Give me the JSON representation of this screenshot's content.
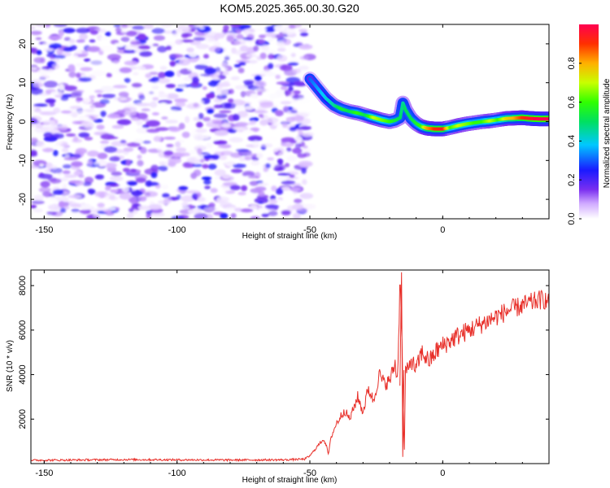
{
  "title": "KOM5.2025.365.00.30.G20",
  "chart_data": [
    {
      "type": "heatmap",
      "name": "spectrogram",
      "xlabel": "Height of straight line (km)",
      "ylabel": "Frequency (Hz)",
      "xlim": [
        -155,
        40
      ],
      "ylim": [
        -25,
        25
      ],
      "xticks": [
        -150,
        -100,
        -50,
        0
      ],
      "xtick_labels": [
        "-150",
        "-100",
        "-50",
        "0"
      ],
      "yticks": [
        -20,
        -10,
        0,
        10,
        20
      ],
      "ytick_labels": [
        "-20",
        "-10",
        "0",
        "10",
        "20"
      ],
      "noise_region": {
        "x_range": [
          -155,
          -50
        ],
        "y_range": [
          -25,
          25
        ],
        "amplitude_range": [
          0.0,
          0.25
        ]
      },
      "ridge": {
        "x": [
          -50,
          -47,
          -44,
          -41,
          -38,
          -35,
          -32,
          -29,
          -26,
          -23,
          -20,
          -18,
          -16,
          -15,
          -14,
          -12,
          -10,
          -8,
          -6,
          -3,
          0,
          3,
          6,
          9,
          12,
          15,
          18,
          21,
          24,
          27,
          30,
          33,
          36,
          40
        ],
        "y": [
          11,
          8.5,
          6,
          4.2,
          3.2,
          2.6,
          2.2,
          1.6,
          1.0,
          0.4,
          0.0,
          0.3,
          1.0,
          4.8,
          3.0,
          0.8,
          -0.5,
          -1.3,
          -1.7,
          -1.9,
          -1.9,
          -1.5,
          -1.0,
          -0.6,
          -0.3,
          0.0,
          0.2,
          0.5,
          0.8,
          0.9,
          1.0,
          0.8,
          0.7,
          0.7
        ],
        "amplitude": [
          0.3,
          0.35,
          0.4,
          0.45,
          0.55,
          0.5,
          0.6,
          0.5,
          0.7,
          0.65,
          0.6,
          0.55,
          0.5,
          0.45,
          0.5,
          0.5,
          0.55,
          0.6,
          0.8,
          0.9,
          0.95,
          0.6,
          0.7,
          0.65,
          0.6,
          0.6,
          0.7,
          0.6,
          0.75,
          0.8,
          0.9,
          0.95,
          1.0,
          1.0
        ]
      },
      "colorbar": {
        "label": "Normalized spectral amplitude",
        "range": [
          0.0,
          1.0
        ],
        "ticks": [
          0.0,
          0.2,
          0.4,
          0.6,
          0.8
        ],
        "tick_labels": [
          "0.0",
          "0.2",
          "0.4",
          "0.6",
          "0.8"
        ]
      }
    },
    {
      "type": "line",
      "name": "snr",
      "xlabel": "Height of straight line (km)",
      "ylabel": "SNR (10 * v/v)",
      "xlim": [
        -155,
        40
      ],
      "ylim": [
        0,
        8700
      ],
      "xticks": [
        -150,
        -100,
        -50,
        0
      ],
      "xtick_labels": [
        "-150",
        "-100",
        "-50",
        "0"
      ],
      "yticks": [
        2000,
        4000,
        6000,
        8000
      ],
      "ytick_labels": [
        "2000",
        "4000",
        "6000",
        "8000"
      ],
      "color": "#e8302a",
      "series": [
        {
          "name": "SNR",
          "x": [
            -155,
            -140,
            -120,
            -100,
            -80,
            -60,
            -52,
            -50,
            -49,
            -47,
            -45,
            -44,
            -43,
            -42,
            -40,
            -37,
            -35,
            -32,
            -30,
            -28,
            -26,
            -24,
            -22,
            -20,
            -18,
            -17,
            -16,
            -15,
            -14.5,
            -14,
            -13,
            -12,
            -10,
            -8,
            -5,
            -2,
            0,
            5,
            10,
            15,
            20,
            25,
            30,
            35,
            38,
            40
          ],
          "y": [
            150,
            160,
            180,
            170,
            160,
            170,
            200,
            350,
            500,
            800,
            1100,
            900,
            400,
            1200,
            1800,
            2400,
            2000,
            3000,
            2300,
            3400,
            2800,
            4000,
            3600,
            3700,
            4500,
            3800,
            8600,
            3900,
            200,
            4300,
            4100,
            4700,
            4200,
            5000,
            4600,
            5100,
            5300,
            5700,
            6000,
            6300,
            6600,
            6900,
            7100,
            7300,
            7400,
            7200
          ]
        }
      ]
    }
  ]
}
